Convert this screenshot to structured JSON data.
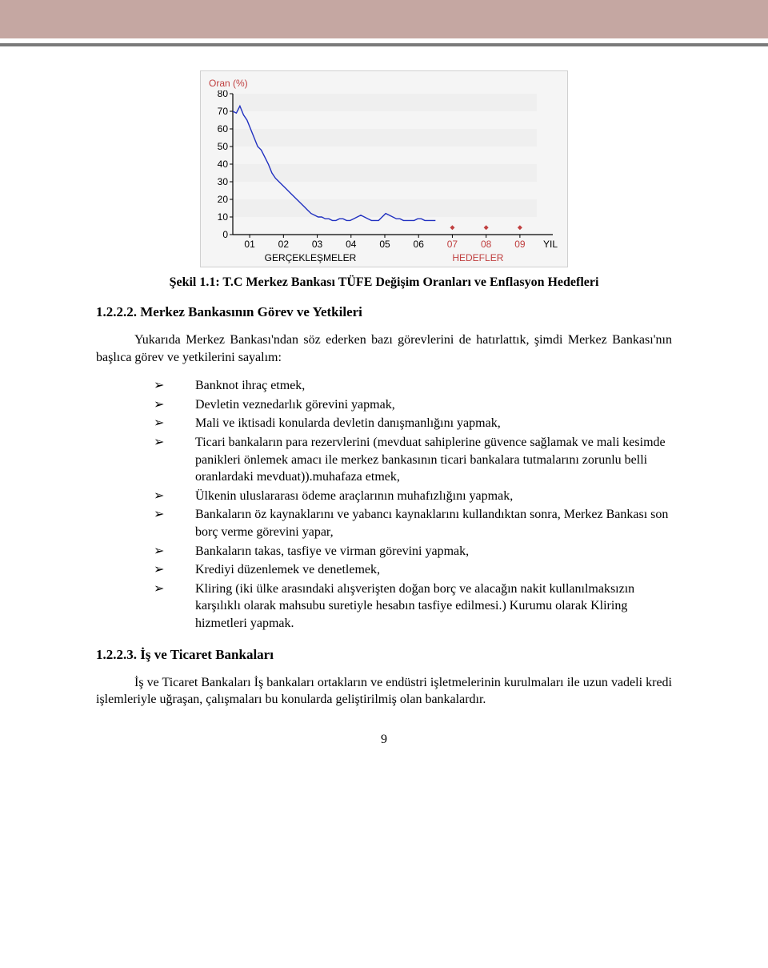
{
  "chart": {
    "type": "line",
    "y_label": "Oran (%)",
    "y_ticks": [
      0,
      10,
      20,
      30,
      40,
      50,
      60,
      70,
      80
    ],
    "ylim": [
      0,
      80
    ],
    "x_ticks": [
      "01",
      "02",
      "03",
      "04",
      "05",
      "06",
      "07",
      "08",
      "09"
    ],
    "x_end_label": "YIL",
    "line_color": "#2030c0",
    "line_width": 1.4,
    "band_color": "#efefef",
    "background_color": "#f5f5f5",
    "axis_color": "#000000",
    "tick_font_color": "#000000",
    "xlabel_color_right": "#c04040",
    "legend_left": "GERÇEKLEŞMELER",
    "legend_right": "HEDEFLER",
    "target_marker_color": "#c04040",
    "target_marker_size": 3,
    "series": [
      70,
      69,
      73,
      68,
      65,
      60,
      55,
      50,
      48,
      44,
      40,
      35,
      32,
      30,
      28,
      26,
      24,
      22,
      20,
      18,
      16,
      14,
      12,
      11,
      10,
      10,
      9,
      9,
      8,
      8,
      9,
      9,
      8,
      8,
      9,
      10,
      11,
      10,
      9,
      8,
      8,
      8,
      10,
      12,
      11,
      10,
      9,
      9,
      8,
      8,
      8,
      8,
      9,
      9,
      8,
      8,
      8,
      8
    ],
    "targets": [
      {
        "x_index": 6,
        "value": 4
      },
      {
        "x_index": 7,
        "value": 4
      },
      {
        "x_index": 8,
        "value": 4
      }
    ],
    "label_fontsize": 12
  },
  "caption": "Şekil 1.1: T.C Merkez Bankası TÜFE Değişim Oranları ve Enflasyon Hedefleri",
  "section1": {
    "heading": "1.2.2.2. Merkez Bankasının Görev ve Yetkileri",
    "intro": "Yukarıda Merkez Bankası'ndan söz ederken bazı görevlerini de hatırlattık, şimdi Merkez Bankası'nın başlıca görev ve yetkilerini sayalım:",
    "bullets": [
      "Banknot ihraç etmek,",
      "Devletin veznedarlık görevini yapmak,",
      "Mali ve iktisadi konularda devletin danışmanlığını yapmak,",
      "Ticari bankaların para rezervlerini (mevduat sahiplerine güvence sağlamak ve mali kesimde panikleri önlemek amacı ile merkez bankasının ticari bankalara tutmalarını zorunlu belli oranlardaki mevduat)).muhafaza etmek,",
      "Ülkenin uluslararası ödeme araçlarının muhafızlığını yapmak,",
      "Bankaların öz kaynaklarını ve yabancı kaynaklarını kullandıktan sonra, Merkez Bankası son borç verme görevini yapar,",
      "Bankaların takas, tasfiye ve virman görevini yapmak,",
      "Krediyi düzenlemek ve denetlemek,",
      "Kliring (iki ülke arasındaki alışverişten doğan borç ve alacağın nakit kullanılmaksızın karşılıklı olarak mahsubu suretiyle hesabın tasfiye edilmesi.) Kurumu olarak Kliring hizmetleri yapmak."
    ]
  },
  "section2": {
    "heading": "1.2.2.3. İş ve Ticaret Bankaları",
    "para": "İş ve Ticaret Bankaları İş bankaları ortakların ve endüstri işletmelerinin kurulmaları ile uzun vadeli kredi işlemleriyle uğraşan, çalışmaları bu konularda geliştirilmiş olan bankalardır."
  },
  "page_number": "9"
}
